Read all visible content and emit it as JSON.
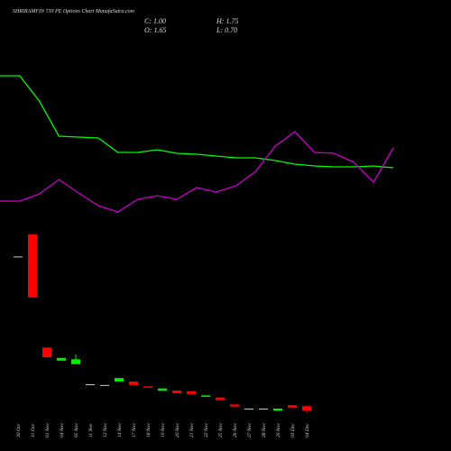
{
  "chart_data": {
    "type": "candlestick",
    "title": "SHRIRAMFIN 730 PE Options Chart MunafaSutra.com",
    "info": [
      "C: 1.00",
      "H: 1.75",
      "O: 1.65",
      "L: 0.70"
    ],
    "categories": [
      "30 Oct",
      "31 Oct",
      "01 Nov",
      "04 Nov",
      "05 Nov",
      "11 Nov",
      "12 Nov",
      "14 Nov",
      "17 Nov",
      "18 Nov",
      "19 Nov",
      "20 Nov",
      "21 Nov",
      "22 Nov",
      "25 Nov",
      "26 Nov",
      "27 Nov",
      "28 Nov",
      "29 Nov",
      "03 Dec",
      "04 Dec"
    ],
    "open": [
      23.2,
      26.4,
      10.1,
      8.2,
      7.7,
      4.8,
      4.7,
      5.2,
      5.2,
      4.5,
      3.9,
      3.9,
      3.8,
      3.0,
      2.9,
      1.9,
      1.3,
      1.3,
      1.0,
      1.8,
      1.65
    ],
    "high": [
      23.2,
      26.4,
      10.1,
      8.6,
      9.1,
      4.8,
      4.7,
      5.7,
      5.2,
      4.5,
      4.2,
      3.9,
      3.8,
      3.2,
      2.9,
      1.9,
      1.3,
      1.3,
      1.3,
      1.8,
      1.75
    ],
    "low": [
      23.2,
      17.3,
      8.7,
      8.2,
      7.7,
      4.8,
      4.7,
      5.2,
      4.7,
      4.3,
      3.9,
      3.5,
      3.4,
      3.0,
      2.5,
      1.6,
      1.3,
      1.3,
      1.0,
      1.4,
      0.7
    ],
    "close": [
      23.2,
      17.3,
      8.7,
      8.6,
      8.4,
      4.8,
      4.7,
      5.7,
      4.7,
      4.3,
      4.2,
      3.5,
      3.4,
      3.2,
      2.5,
      1.6,
      1.3,
      1.3,
      1.3,
      1.4,
      1.0
    ],
    "ylim": [
      0,
      30
    ],
    "up_color": "#00ee00",
    "down_color": "#ff0000",
    "flat_color": "#cccccc",
    "lines": {
      "ylim": [
        0,
        100
      ],
      "series": [
        {
          "color": "#00ff00",
          "values": [
            88,
            88,
            74,
            54.5,
            54,
            53.5,
            45.5,
            45.5,
            47,
            45,
            44.5,
            43.5,
            42.5,
            42.5,
            41,
            39,
            38,
            37.5,
            37.5,
            38,
            37
          ]
        },
        {
          "color": "#cc00cc",
          "values": [
            18.5,
            18.5,
            22.5,
            30.5,
            23,
            16,
            12.5,
            19.5,
            21.5,
            19.5,
            26,
            23.5,
            27,
            35,
            49,
            57,
            45.5,
            45,
            40,
            29,
            48
          ]
        }
      ]
    }
  }
}
